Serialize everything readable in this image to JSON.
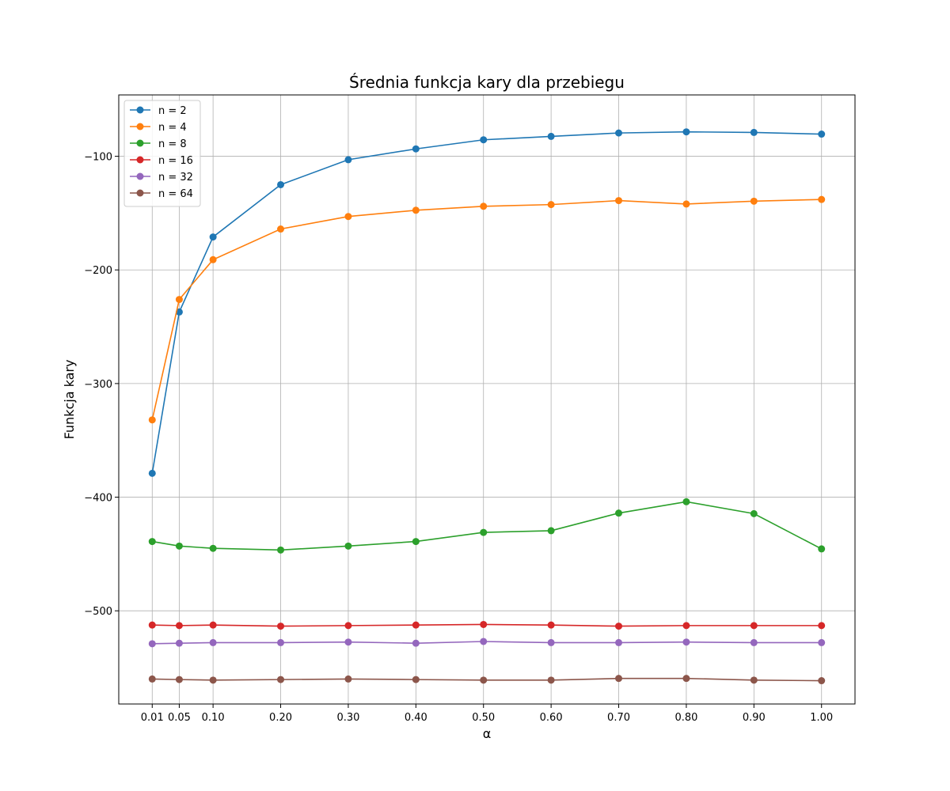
{
  "chart_data": {
    "type": "line",
    "title": "Średnia funkcja kary dla przebiegu",
    "xlabel": "α",
    "ylabel": "Funkcja kary",
    "x": [
      0.01,
      0.05,
      0.1,
      0.2,
      0.3,
      0.4,
      0.5,
      0.6,
      0.7,
      0.8,
      0.9,
      1.0
    ],
    "x_tick_labels": [
      "0.01",
      "0.05",
      "0.10",
      "0.20",
      "0.30",
      "0.40",
      "0.50",
      "0.60",
      "0.70",
      "0.80",
      "0.90",
      "1.00"
    ],
    "y_ticks": [
      -100,
      -200,
      -300,
      -400,
      -500
    ],
    "y_tick_labels": [
      "−100",
      "−200",
      "−300",
      "−400",
      "−500"
    ],
    "xlim": [
      -0.0395,
      1.0495
    ],
    "ylim": [
      -582,
      -46
    ],
    "grid": true,
    "legend_position": "top-left",
    "marker": "circle",
    "series": [
      {
        "name": "n = 2",
        "color": "#1f77b4",
        "values": [
          -379,
          -237,
          -171,
          -125,
          -103,
          -93.5,
          -85.5,
          -82.5,
          -79.5,
          -78.5,
          -79,
          -80.5
        ]
      },
      {
        "name": "n = 4",
        "color": "#ff7f0e",
        "values": [
          -332,
          -226,
          -191,
          -164,
          -153,
          -147.5,
          -144,
          -142.5,
          -139,
          -142,
          -139.5,
          -138
        ]
      },
      {
        "name": "n = 8",
        "color": "#2ca02c",
        "values": [
          -439,
          -443,
          -445,
          -446.5,
          -443,
          -439,
          -431,
          -429.5,
          -414,
          -404,
          -414.5,
          -445.5
        ]
      },
      {
        "name": "n = 16",
        "color": "#d62728",
        "values": [
          -512.5,
          -513,
          -512.5,
          -513.5,
          -513,
          -512.5,
          -512,
          -512.5,
          -513.5,
          -513,
          -513,
          -513
        ]
      },
      {
        "name": "n = 32",
        "color": "#9467bd",
        "values": [
          -529,
          -528.5,
          -528,
          -528,
          -527.5,
          -528.5,
          -527,
          -528,
          -528,
          -527.5,
          -528,
          -528
        ]
      },
      {
        "name": "n = 64",
        "color": "#8c564b",
        "values": [
          -560,
          -560.5,
          -561,
          -560.5,
          -560,
          -560.5,
          -561,
          -561,
          -559.5,
          -559.5,
          -561,
          -561.5
        ]
      }
    ]
  }
}
